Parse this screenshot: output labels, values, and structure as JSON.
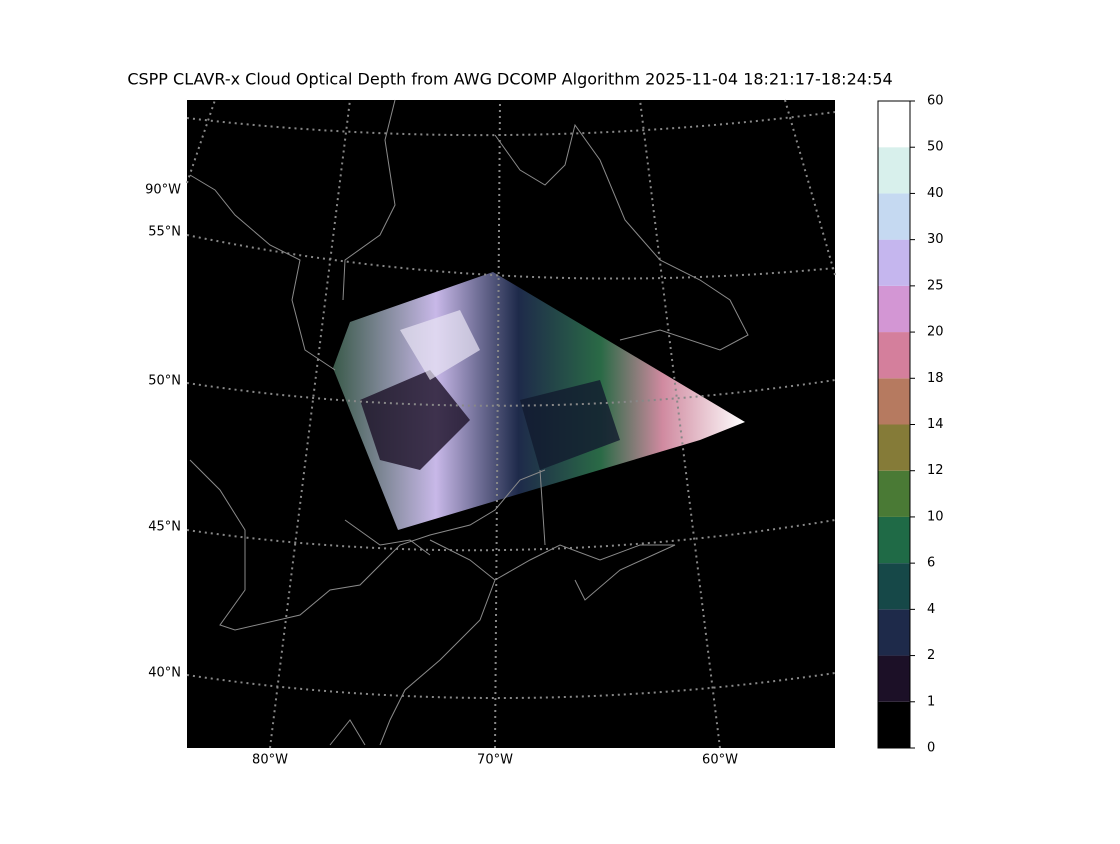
{
  "title": "CSPP CLAVR-x Cloud Optical Depth from AWG DCOMP Algorithm 2025-11-04 18:21:17-18:24:54",
  "left_labels": [
    "90°W",
    "55°N",
    "50°N",
    "45°N",
    "40°N"
  ],
  "bottom_labels": [
    "80°W",
    "70°W",
    "60°W"
  ],
  "colorbar": {
    "ticks": [
      0,
      1,
      2,
      4,
      6,
      10,
      12,
      14,
      18,
      20,
      25,
      30,
      40,
      50,
      60
    ],
    "colors": [
      "#000000",
      "#1c1027",
      "#1e2a4a",
      "#164848",
      "#1f6a46",
      "#4a7a35",
      "#857b38",
      "#b67a60",
      "#d47f9c",
      "#d396d4",
      "#c5b6ee",
      "#c5d9f1",
      "#d8f0ec",
      "#ffffff"
    ]
  }
}
